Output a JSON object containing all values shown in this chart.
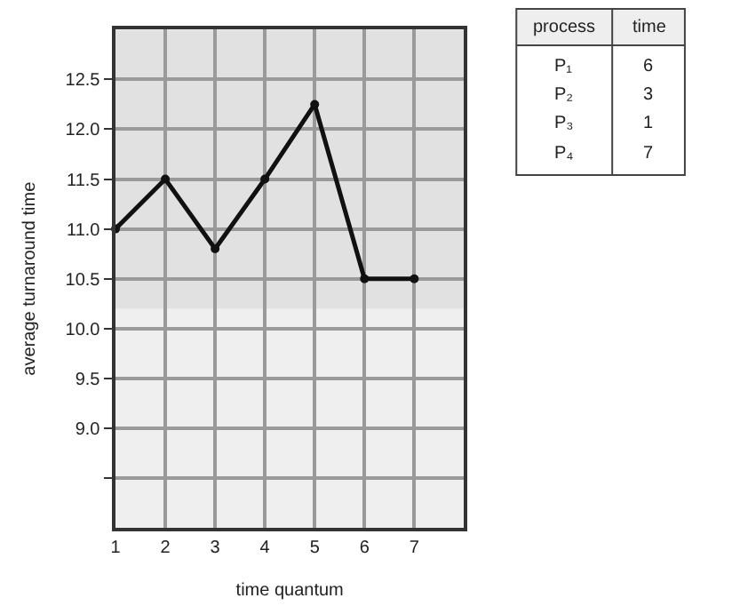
{
  "chart_data": [
    {
      "type": "line",
      "xlabel": "time quantum",
      "ylabel": "average turnaround time",
      "x": [
        1,
        2,
        3,
        4,
        5,
        6,
        7
      ],
      "series": [
        {
          "color": "#111111",
          "values": [
            11.0,
            11.5,
            10.8,
            11.5,
            12.25,
            10.5,
            10.5
          ]
        }
      ],
      "xlim": [
        1,
        8
      ],
      "xticks": [
        1,
        2,
        3,
        4,
        5,
        6,
        7
      ],
      "ylim": [
        8.0,
        13.0
      ],
      "yticks": [
        {
          "value": 8.5,
          "label": null
        },
        {
          "value": 9,
          "label": "9.0"
        },
        9.5,
        {
          "value": 10,
          "label": "10.0"
        },
        10.5,
        {
          "value": 11,
          "label": "11.0"
        },
        11.5,
        {
          "value": 12,
          "label": "12.0"
        },
        12.5
      ],
      "bands": [
        {
          "axis": "y",
          "from": 10.2,
          "to": 13.0,
          "color": "#e1e1e1"
        }
      ],
      "grid": true,
      "marker": "circle",
      "line_style": "solid"
    },
    {
      "type": "other",
      "xlabel": "process",
      "ylabel": "time",
      "categories": [
        "P₁",
        "P₂",
        "P₃",
        "P₄"
      ],
      "values": [
        6,
        3,
        1,
        7
      ],
      "data_labels": true
    }
  ]
}
